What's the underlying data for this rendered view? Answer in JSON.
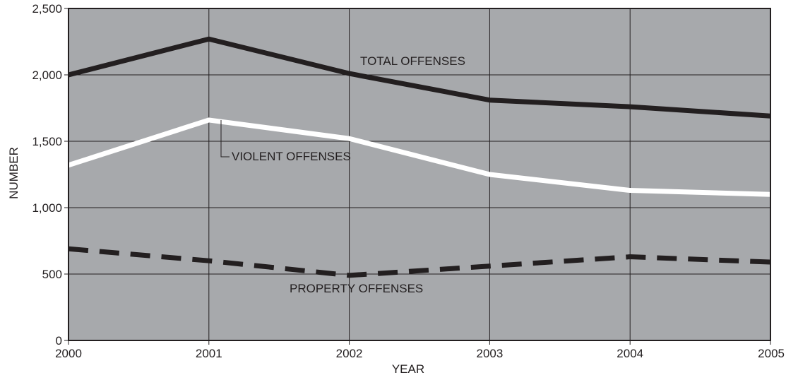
{
  "chart_data": {
    "type": "line",
    "title": "",
    "xlabel": "YEAR",
    "ylabel": "NUMBER",
    "x": [
      2000,
      2001,
      2002,
      2003,
      2004,
      2005
    ],
    "x_tick_labels": [
      "2000",
      "2001",
      "2002",
      "2003",
      "2004",
      "2005"
    ],
    "y_tick_labels": [
      "0",
      "500",
      "1,000",
      "1,500",
      "2,000",
      "2,500"
    ],
    "y_ticks": [
      0,
      500,
      1000,
      1500,
      2000,
      2500
    ],
    "xlim": [
      2000,
      2005
    ],
    "ylim": [
      0,
      2500
    ],
    "grid": true,
    "legend": "none",
    "plot_background": "#a7a9ac",
    "series": [
      {
        "name": "TOTAL OFFENSES",
        "values": [
          2000,
          2270,
          2010,
          1810,
          1760,
          1690
        ],
        "color": "#231f20",
        "style": "solid"
      },
      {
        "name": "VIOLENT OFFENSES",
        "values": [
          1320,
          1660,
          1520,
          1250,
          1130,
          1100
        ],
        "color": "#ffffff",
        "style": "solid"
      },
      {
        "name": "PROPERTY OFFENSES",
        "values": [
          690,
          600,
          490,
          560,
          630,
          590
        ],
        "color": "#231f20",
        "style": "dashed"
      }
    ],
    "annotations": [
      "TOTAL OFFENSES",
      "VIOLENT OFFENSES",
      "PROPERTY OFFENSES"
    ]
  }
}
